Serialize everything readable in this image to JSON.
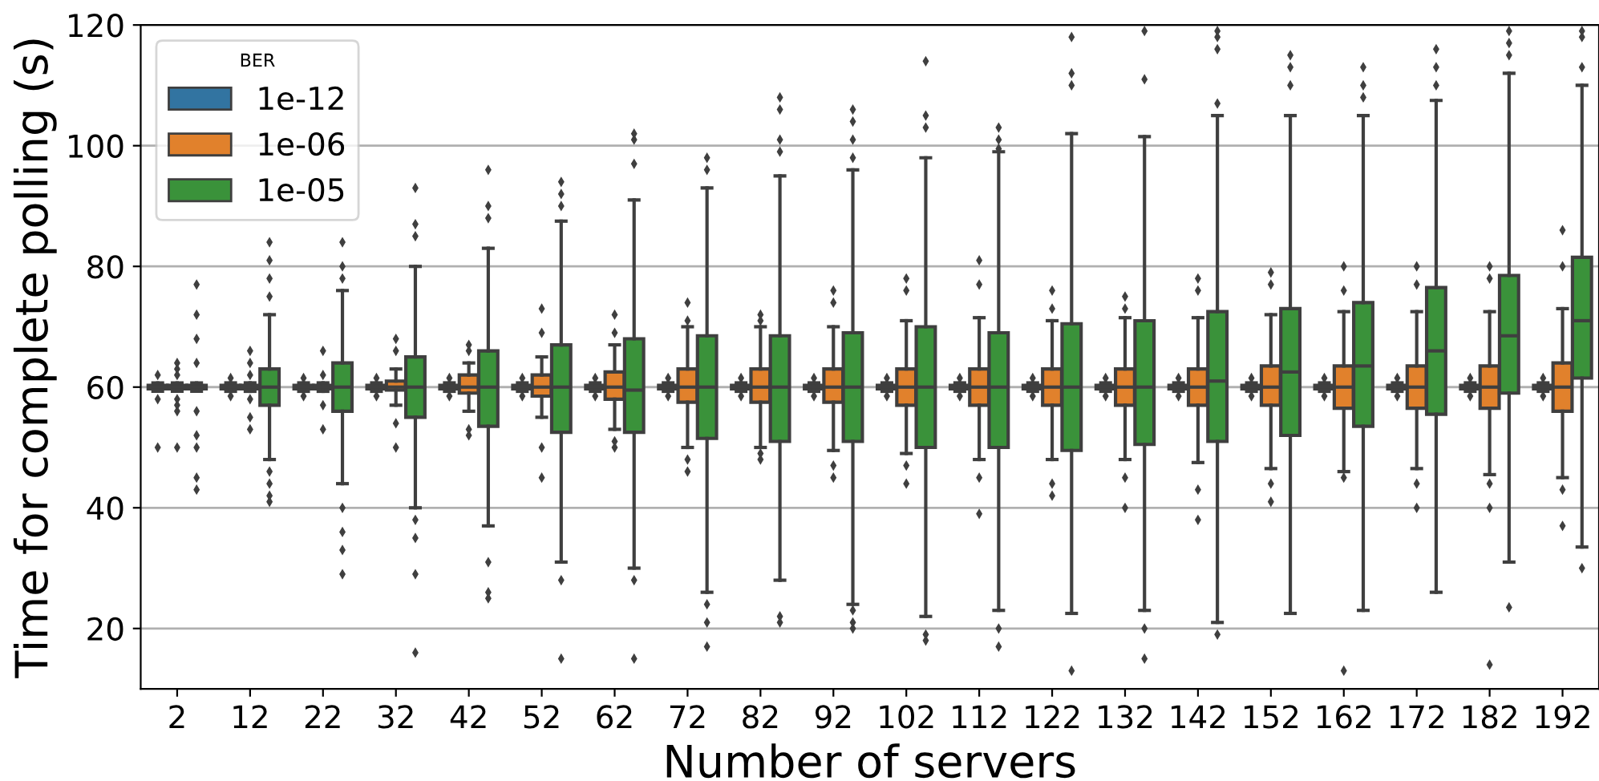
{
  "chart_data": {
    "type": "box",
    "xlabel": "Number of servers",
    "ylabel": "Time for complete polling (s)",
    "legend_title": "BER",
    "legend": "top left",
    "grid": "y",
    "marker": "diamond",
    "categories": [
      "2",
      "12",
      "22",
      "32",
      "42",
      "52",
      "62",
      "72",
      "82",
      "92",
      "102",
      "112",
      "122",
      "132",
      "142",
      "152",
      "162",
      "172",
      "182",
      "192"
    ],
    "ylim": [
      10,
      120
    ],
    "yticks": [
      20,
      40,
      60,
      80,
      100,
      120
    ],
    "series": [
      {
        "name": "1e-12",
        "color": "#3274a1",
        "boxes": [
          {
            "low": 59.3,
            "q1": 59.7,
            "median": 60,
            "q3": 60.3,
            "high": 60.7,
            "outliers": [
              50,
              58,
              62
            ]
          },
          {
            "low": 59.3,
            "q1": 59.7,
            "median": 60,
            "q3": 60.3,
            "high": 60.7,
            "outliers": [
              58.5,
              61.5
            ]
          },
          {
            "low": 59.3,
            "q1": 59.7,
            "median": 60,
            "q3": 60.3,
            "high": 60.7,
            "outliers": [
              58.5,
              61.5
            ]
          },
          {
            "low": 59.3,
            "q1": 59.7,
            "median": 60,
            "q3": 60.3,
            "high": 60.7,
            "outliers": [
              58.5,
              61.5
            ]
          },
          {
            "low": 59.3,
            "q1": 59.7,
            "median": 60,
            "q3": 60.3,
            "high": 60.7,
            "outliers": [
              58.5,
              61.5
            ]
          },
          {
            "low": 59.3,
            "q1": 59.7,
            "median": 60,
            "q3": 60.3,
            "high": 60.7,
            "outliers": [
              58.5,
              61.5
            ]
          },
          {
            "low": 59.3,
            "q1": 59.7,
            "median": 60,
            "q3": 60.3,
            "high": 60.7,
            "outliers": [
              58.5,
              61.5
            ]
          },
          {
            "low": 59.3,
            "q1": 59.7,
            "median": 60,
            "q3": 60.3,
            "high": 60.7,
            "outliers": [
              58.5,
              61.5
            ]
          },
          {
            "low": 59.3,
            "q1": 59.7,
            "median": 60,
            "q3": 60.3,
            "high": 60.7,
            "outliers": [
              58.5,
              61.5
            ]
          },
          {
            "low": 59.3,
            "q1": 59.7,
            "median": 60,
            "q3": 60.3,
            "high": 60.7,
            "outliers": [
              58.5,
              61.5
            ]
          },
          {
            "low": 59.3,
            "q1": 59.7,
            "median": 60,
            "q3": 60.3,
            "high": 60.7,
            "outliers": [
              58.5,
              61.5
            ]
          },
          {
            "low": 59.3,
            "q1": 59.7,
            "median": 60,
            "q3": 60.3,
            "high": 60.7,
            "outliers": [
              58.5,
              61.5
            ]
          },
          {
            "low": 59.3,
            "q1": 59.7,
            "median": 60,
            "q3": 60.3,
            "high": 60.7,
            "outliers": [
              58.5,
              61.5
            ]
          },
          {
            "low": 59.3,
            "q1": 59.7,
            "median": 60,
            "q3": 60.3,
            "high": 60.7,
            "outliers": [
              58.5,
              61.5
            ]
          },
          {
            "low": 59.3,
            "q1": 59.7,
            "median": 60,
            "q3": 60.3,
            "high": 60.7,
            "outliers": [
              58.5,
              61.5
            ]
          },
          {
            "low": 59.3,
            "q1": 59.7,
            "median": 60,
            "q3": 60.3,
            "high": 60.7,
            "outliers": [
              58.5,
              61.5
            ]
          },
          {
            "low": 59.3,
            "q1": 59.7,
            "median": 60,
            "q3": 60.3,
            "high": 60.7,
            "outliers": [
              58.5,
              61.5
            ]
          },
          {
            "low": 59.3,
            "q1": 59.7,
            "median": 60,
            "q3": 60.3,
            "high": 60.7,
            "outliers": [
              58.5,
              61.5
            ]
          },
          {
            "low": 59.3,
            "q1": 59.7,
            "median": 60,
            "q3": 60.3,
            "high": 60.7,
            "outliers": [
              58.5,
              61.5
            ]
          },
          {
            "low": 59.3,
            "q1": 59.7,
            "median": 60,
            "q3": 60.3,
            "high": 60.7,
            "outliers": [
              58.5,
              61.5
            ]
          }
        ]
      },
      {
        "name": "1e-06",
        "color": "#e1812c",
        "boxes": [
          {
            "low": 59.3,
            "q1": 59.7,
            "median": 60,
            "q3": 60.3,
            "high": 60.7,
            "outliers": [
              50,
              56,
              57,
              58,
              62,
              63,
              64
            ]
          },
          {
            "low": 59.3,
            "q1": 59.7,
            "median": 60,
            "q3": 60.3,
            "high": 60.7,
            "outliers": [
              53,
              55,
              58,
              62,
              64,
              66
            ]
          },
          {
            "low": 59.3,
            "q1": 59.7,
            "median": 60,
            "q3": 60.3,
            "high": 60.7,
            "outliers": [
              53,
              57,
              62,
              66
            ]
          },
          {
            "low": 57,
            "q1": 59.5,
            "median": 60,
            "q3": 61,
            "high": 63,
            "outliers": [
              68,
              66,
              54,
              50
            ]
          },
          {
            "low": 56,
            "q1": 59,
            "median": 60,
            "q3": 62,
            "high": 64,
            "outliers": [
              67,
              66,
              53,
              52
            ]
          },
          {
            "low": 55,
            "q1": 58.5,
            "median": 60,
            "q3": 62,
            "high": 65,
            "outliers": [
              73,
              69,
              50,
              45
            ]
          },
          {
            "low": 53,
            "q1": 58,
            "median": 60,
            "q3": 62.5,
            "high": 67,
            "outliers": [
              72,
              69,
              51,
              50
            ]
          },
          {
            "low": 50,
            "q1": 57.5,
            "median": 60,
            "q3": 63,
            "high": 70,
            "outliers": [
              74,
              71,
              48,
              46
            ]
          },
          {
            "low": 50,
            "q1": 57.5,
            "median": 60,
            "q3": 63,
            "high": 70,
            "outliers": [
              72,
              71,
              49,
              48
            ]
          },
          {
            "low": 49.5,
            "q1": 57.5,
            "median": 60,
            "q3": 63,
            "high": 70,
            "outliers": [
              76,
              74,
              47,
              45
            ]
          },
          {
            "low": 49,
            "q1": 57,
            "median": 60,
            "q3": 63,
            "high": 71,
            "outliers": [
              78,
              76,
              47,
              44
            ]
          },
          {
            "low": 48,
            "q1": 57,
            "median": 60,
            "q3": 63,
            "high": 71.5,
            "outliers": [
              81,
              77,
              45,
              39
            ]
          },
          {
            "low": 48,
            "q1": 57,
            "median": 60,
            "q3": 63,
            "high": 71,
            "outliers": [
              76,
              73,
              44,
              42
            ]
          },
          {
            "low": 48,
            "q1": 57,
            "median": 60,
            "q3": 63,
            "high": 71.5,
            "outliers": [
              75,
              73,
              45,
              40
            ]
          },
          {
            "low": 47.5,
            "q1": 57,
            "median": 60,
            "q3": 63,
            "high": 71.5,
            "outliers": [
              78,
              76,
              43,
              38
            ]
          },
          {
            "low": 46.5,
            "q1": 57,
            "median": 60,
            "q3": 63.5,
            "high": 72,
            "outliers": [
              79,
              77,
              44,
              41
            ]
          },
          {
            "low": 46,
            "q1": 56.5,
            "median": 60,
            "q3": 63.5,
            "high": 72.5,
            "outliers": [
              80,
              76,
              45,
              13
            ]
          },
          {
            "low": 46.5,
            "q1": 56.5,
            "median": 60,
            "q3": 63.5,
            "high": 72.5,
            "outliers": [
              80,
              77,
              44,
              40
            ]
          },
          {
            "low": 45.5,
            "q1": 56.5,
            "median": 60,
            "q3": 63.5,
            "high": 72.5,
            "outliers": [
              80,
              78,
              44,
              40,
              14
            ]
          },
          {
            "low": 45,
            "q1": 56,
            "median": 60,
            "q3": 64,
            "high": 73,
            "outliers": [
              86,
              80,
              43,
              37
            ]
          }
        ]
      },
      {
        "name": "1e-05",
        "color": "#3a923a",
        "boxes": [
          {
            "low": 59.3,
            "q1": 59.7,
            "median": 60,
            "q3": 60.3,
            "high": 60.7,
            "outliers": [
              43,
              45,
              50,
              52,
              56,
              64,
              68,
              72,
              77
            ]
          },
          {
            "low": 48,
            "q1": 57,
            "median": 60,
            "q3": 63,
            "high": 72,
            "outliers": [
              84,
              81,
              78,
              75,
              46,
              44,
              42,
              41
            ]
          },
          {
            "low": 44,
            "q1": 56,
            "median": 60,
            "q3": 64,
            "high": 76,
            "outliers": [
              84,
              80,
              78,
              40,
              36,
              33,
              29
            ]
          },
          {
            "low": 40,
            "q1": 55,
            "median": 60,
            "q3": 65,
            "high": 80,
            "outliers": [
              93,
              87,
              85,
              38,
              35,
              29,
              16
            ]
          },
          {
            "low": 37,
            "q1": 53.5,
            "median": 60,
            "q3": 66,
            "high": 83,
            "outliers": [
              96,
              90,
              88,
              31,
              26,
              25
            ]
          },
          {
            "low": 31,
            "q1": 52.5,
            "median": 60,
            "q3": 67,
            "high": 87.5,
            "outliers": [
              94,
              92,
              90,
              28,
              15
            ]
          },
          {
            "low": 30,
            "q1": 52.5,
            "median": 59.5,
            "q3": 68,
            "high": 91,
            "outliers": [
              102,
              101,
              97,
              28,
              15
            ]
          },
          {
            "low": 26,
            "q1": 51.5,
            "median": 60,
            "q3": 68.5,
            "high": 93,
            "outliers": [
              98,
              96,
              24,
              21,
              17
            ]
          },
          {
            "low": 28,
            "q1": 51,
            "median": 60,
            "q3": 68.5,
            "high": 95,
            "outliers": [
              108,
              106,
              101,
              99,
              22,
              21
            ]
          },
          {
            "low": 24,
            "q1": 51,
            "median": 60,
            "q3": 69,
            "high": 96,
            "outliers": [
              106,
              104,
              101,
              98,
              23,
              21,
              20
            ]
          },
          {
            "low": 22,
            "q1": 50,
            "median": 60,
            "q3": 70,
            "high": 98,
            "outliers": [
              114,
              105,
              103,
              19,
              18
            ]
          },
          {
            "low": 23,
            "q1": 50,
            "median": 60,
            "q3": 69,
            "high": 99,
            "outliers": [
              103,
              101,
              99.5,
              20,
              17
            ]
          },
          {
            "low": 22.5,
            "q1": 49.5,
            "median": 60,
            "q3": 70.5,
            "high": 102,
            "outliers": [
              118,
              112,
              110,
              13
            ]
          },
          {
            "low": 23,
            "q1": 50.5,
            "median": 60,
            "q3": 71,
            "high": 101.5,
            "outliers": [
              119,
              111,
              20,
              15
            ]
          },
          {
            "low": 21,
            "q1": 51,
            "median": 61,
            "q3": 72.5,
            "high": 105,
            "outliers": [
              119,
              118,
              116,
              107,
              19
            ]
          },
          {
            "low": 22.5,
            "q1": 52,
            "median": 62.5,
            "q3": 73,
            "high": 105,
            "outliers": [
              115,
              113,
              110
            ]
          },
          {
            "low": 23,
            "q1": 53.5,
            "median": 63.5,
            "q3": 74,
            "high": 105,
            "outliers": [
              113,
              110,
              108
            ]
          },
          {
            "low": 26,
            "q1": 55.5,
            "median": 66,
            "q3": 76.5,
            "high": 107.5,
            "outliers": [
              116,
              113,
              110
            ]
          },
          {
            "low": 31,
            "q1": 59,
            "median": 68.5,
            "q3": 78.5,
            "high": 112,
            "outliers": [
              119,
              117,
              115,
              23.5
            ]
          },
          {
            "low": 33.5,
            "q1": 61.5,
            "median": 71,
            "q3": 81.5,
            "high": 110,
            "outliers": [
              119,
              118,
              113,
              30
            ]
          }
        ]
      }
    ]
  }
}
